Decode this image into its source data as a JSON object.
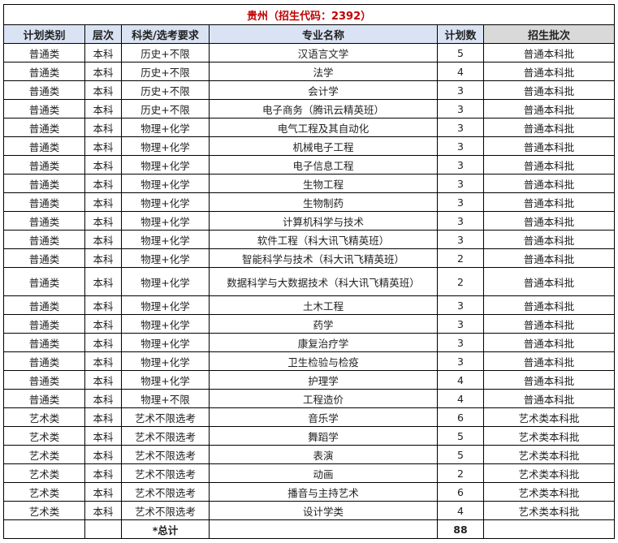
{
  "title": "贵州（招生代码：2392）",
  "headers": [
    "计划类别",
    "层次",
    "科类/选考要求",
    "专业名称",
    "计划数",
    "招生批次"
  ],
  "rows": [
    [
      "普通类",
      "本科",
      "历史+不限",
      "汉语言文学",
      "5",
      "普通本科批"
    ],
    [
      "普通类",
      "本科",
      "历史+不限",
      "法学",
      "4",
      "普通本科批"
    ],
    [
      "普通类",
      "本科",
      "历史+不限",
      "会计学",
      "3",
      "普通本科批"
    ],
    [
      "普通类",
      "本科",
      "历史+不限",
      "电子商务（腾讯云精英班）",
      "3",
      "普通本科批"
    ],
    [
      "普通类",
      "本科",
      "物理+化学",
      "电气工程及其自动化",
      "3",
      "普通本科批"
    ],
    [
      "普通类",
      "本科",
      "物理+化学",
      "机械电子工程",
      "3",
      "普通本科批"
    ],
    [
      "普通类",
      "本科",
      "物理+化学",
      "电子信息工程",
      "3",
      "普通本科批"
    ],
    [
      "普通类",
      "本科",
      "物理+化学",
      "生物工程",
      "3",
      "普通本科批"
    ],
    [
      "普通类",
      "本科",
      "物理+化学",
      "生物制药",
      "3",
      "普通本科批"
    ],
    [
      "普通类",
      "本科",
      "物理+化学",
      "计算机科学与技术",
      "3",
      "普通本科批"
    ],
    [
      "普通类",
      "本科",
      "物理+化学",
      "软件工程（科大讯飞精英班）",
      "3",
      "普通本科批"
    ],
    [
      "普通类",
      "本科",
      "物理+化学",
      "智能科学与技术（科大讯飞精英班）",
      "2",
      "普通本科批"
    ],
    [
      "普通类",
      "本科",
      "物理+化学",
      "数据科学与大数据技术（科大讯飞精英班）",
      "2",
      "普通本科批"
    ],
    [
      "普通类",
      "本科",
      "物理+化学",
      "土木工程",
      "3",
      "普通本科批"
    ],
    [
      "普通类",
      "本科",
      "物理+化学",
      "药学",
      "3",
      "普通本科批"
    ],
    [
      "普通类",
      "本科",
      "物理+化学",
      "康复治疗学",
      "3",
      "普通本科批"
    ],
    [
      "普通类",
      "本科",
      "物理+化学",
      "卫生检验与检疫",
      "3",
      "普通本科批"
    ],
    [
      "普通类",
      "本科",
      "物理+化学",
      "护理学",
      "4",
      "普通本科批"
    ],
    [
      "普通类",
      "本科",
      "物理+不限",
      "工程造价",
      "4",
      "普通本科批"
    ],
    [
      "艺术类",
      "本科",
      "艺术不限选考",
      "音乐学",
      "6",
      "艺术类本科批"
    ],
    [
      "艺术类",
      "本科",
      "艺术不限选考",
      "舞蹈学",
      "5",
      "艺术类本科批"
    ],
    [
      "艺术类",
      "本科",
      "艺术不限选考",
      "表演",
      "5",
      "艺术类本科批"
    ],
    [
      "艺术类",
      "本科",
      "艺术不限选考",
      "动画",
      "2",
      "艺术类本科批"
    ],
    [
      "艺术类",
      "本科",
      "艺术不限选考",
      "播音与主持艺术",
      "6",
      "艺术类本科批"
    ],
    [
      "艺术类",
      "本科",
      "艺术不限选考",
      "设计学类",
      "4",
      "艺术类本科批"
    ]
  ],
  "total": {
    "label": "*总计",
    "value": "88"
  },
  "colors": {
    "title": "#c00000",
    "header": "#dae3f3",
    "header_last": "#d9d9d9"
  }
}
